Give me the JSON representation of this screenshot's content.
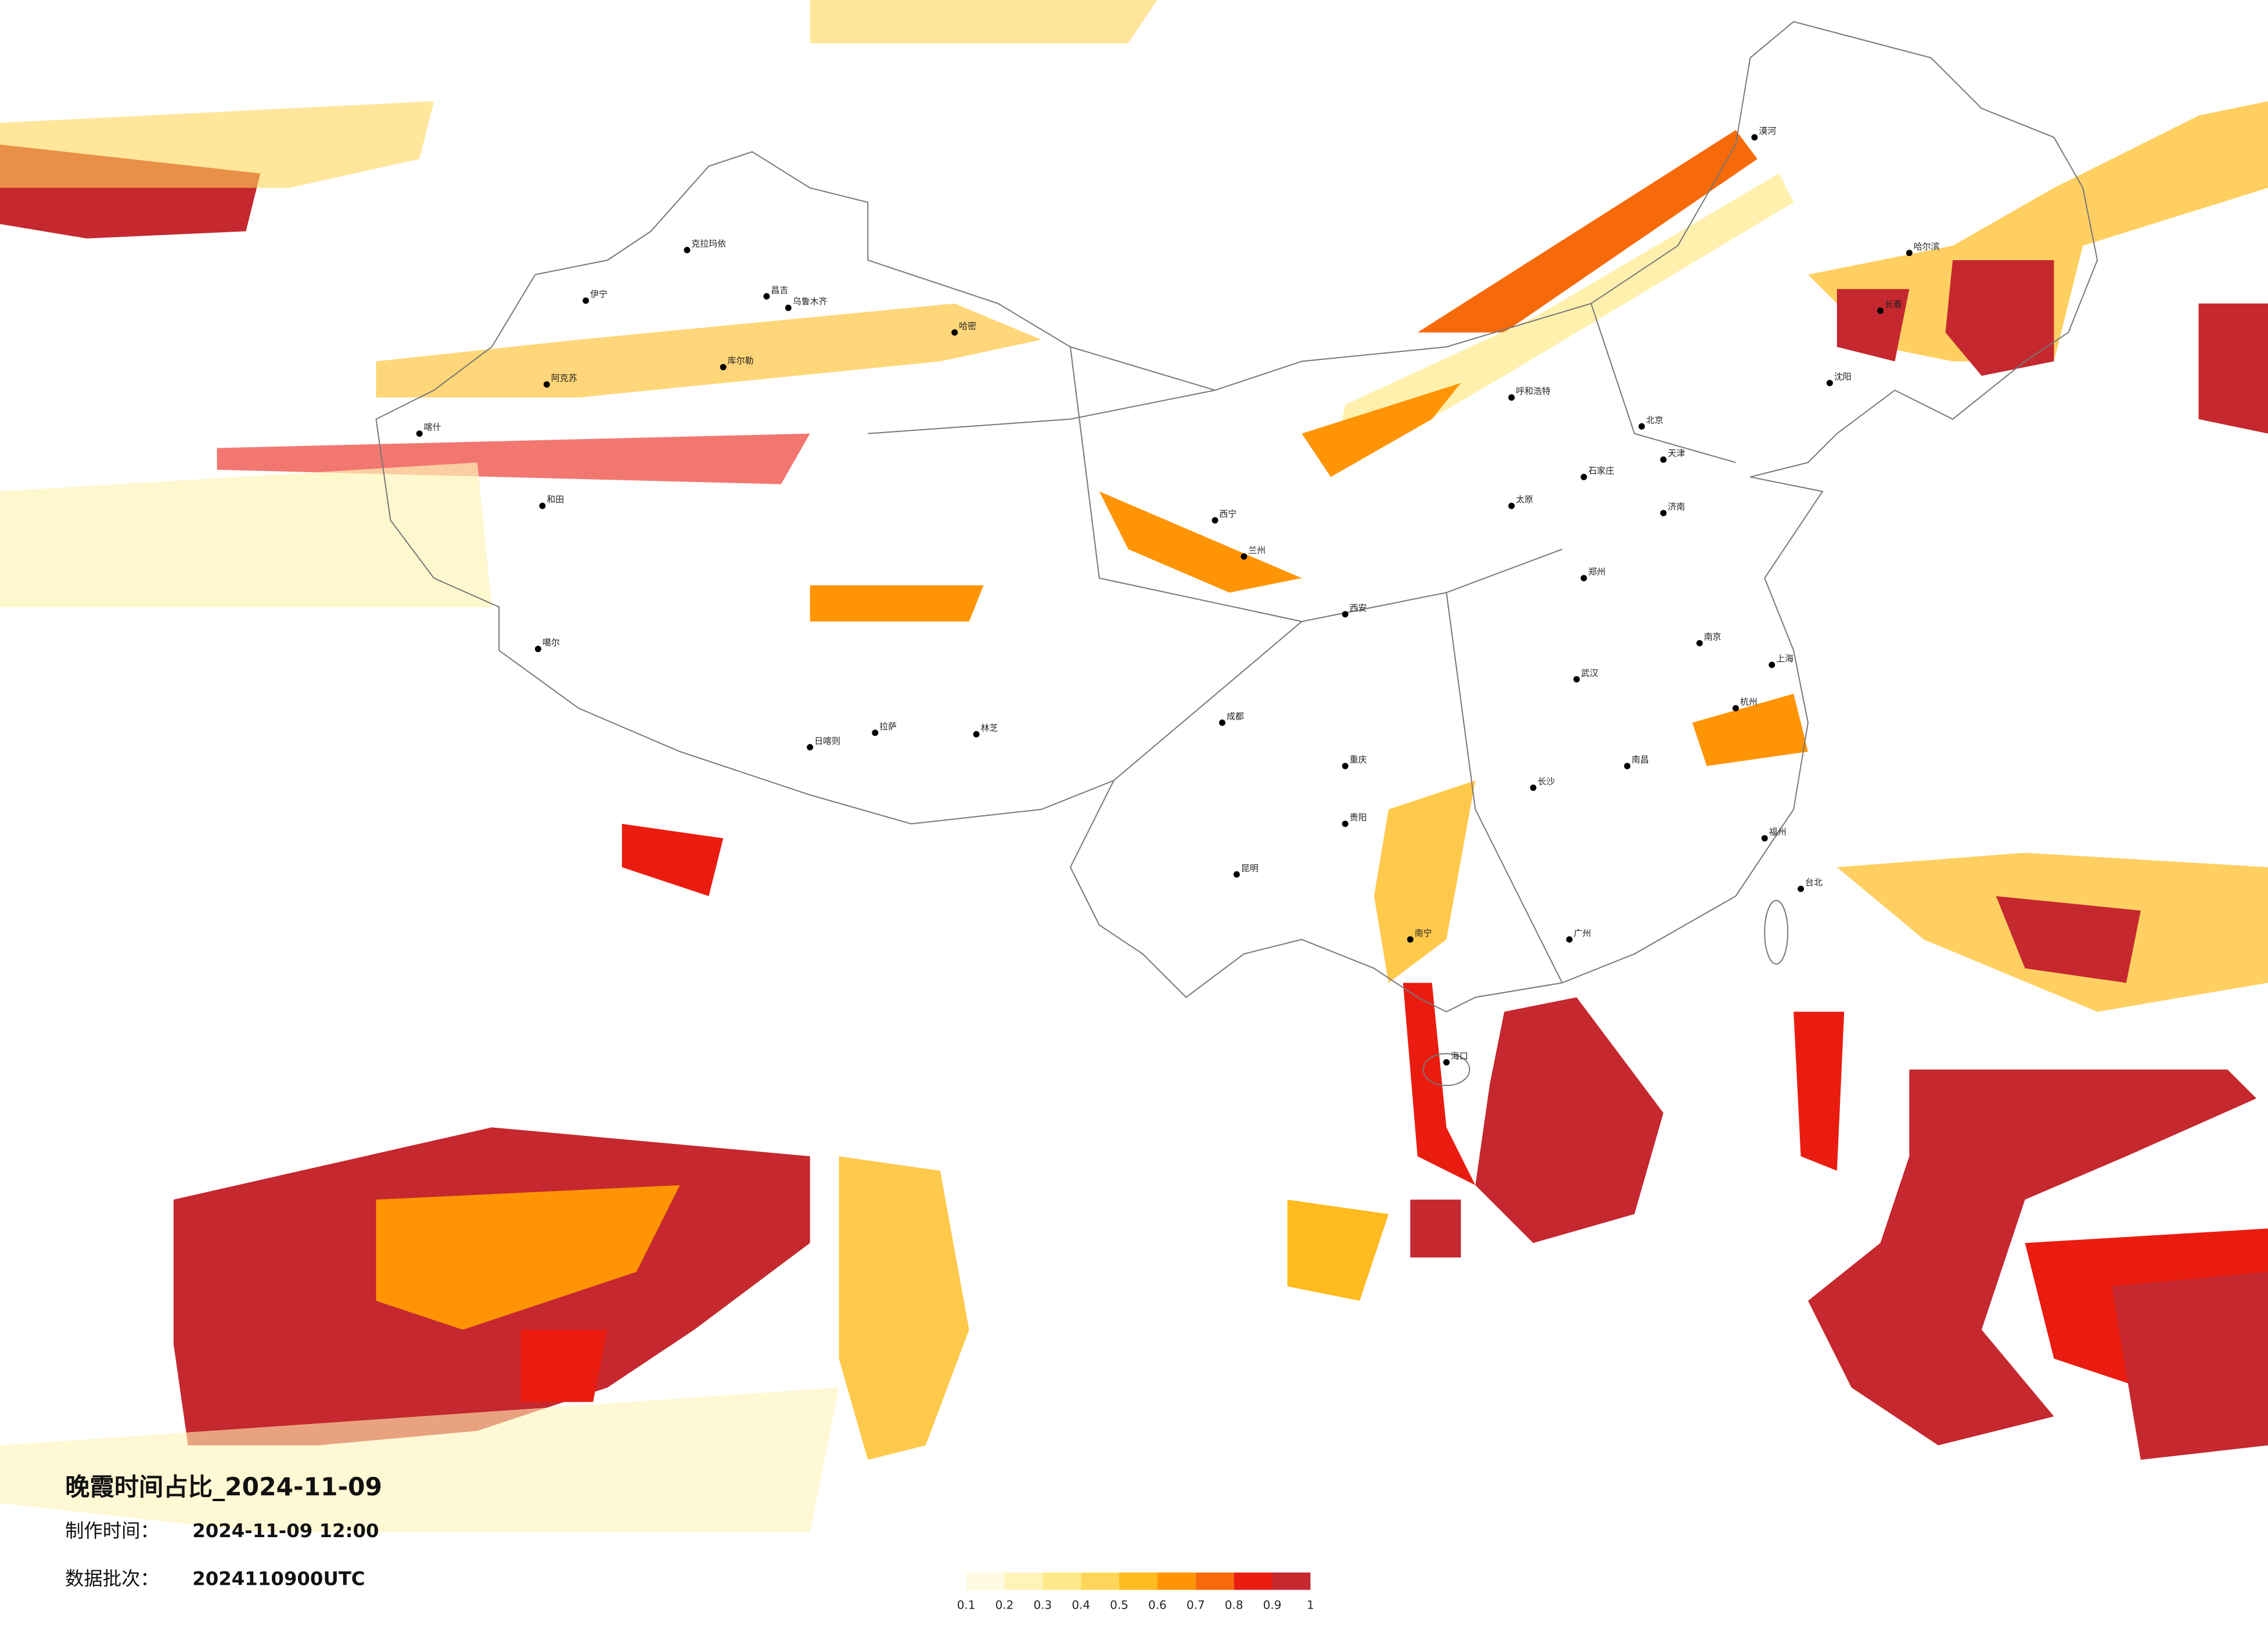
{
  "map": {
    "title": "晚霞时间占比_2024-11-09",
    "made_label": "制作时间：",
    "made_value": "2024-11-09 12:00",
    "batch_label": "数据批次：",
    "batch_value": "2024110900UTC",
    "legend": {
      "ticks": [
        0.1,
        0.2,
        0.3,
        0.4,
        0.5,
        0.6,
        0.7,
        0.8,
        0.9,
        1
      ],
      "colors": [
        "#fffbe3",
        "#fff4b8",
        "#ffe98a",
        "#ffd659",
        "#ffbb1f",
        "#ff9505",
        "#f76a0a",
        "#ea1c10",
        "#c5282e"
      ]
    },
    "places": [
      "漠河",
      "克拉玛依",
      "伊宁",
      "昌吉",
      "乌鲁木齐",
      "哈密",
      "库尔勒",
      "阿克苏",
      "和田",
      "喀什",
      "噶尔",
      "日喀则",
      "拉萨",
      "林芝",
      "西宁",
      "兰州",
      "呼和浩特",
      "北京",
      "天津",
      "石家庄",
      "太原",
      "西安",
      "郑州",
      "济南",
      "成都",
      "重庆",
      "武汉",
      "长沙",
      "南昌",
      "杭州",
      "上海",
      "南京",
      "福州",
      "广州",
      "南宁",
      "昆明",
      "贵阳",
      "哈尔滨",
      "长春",
      "沈阳",
      "海口",
      "台北"
    ]
  }
}
